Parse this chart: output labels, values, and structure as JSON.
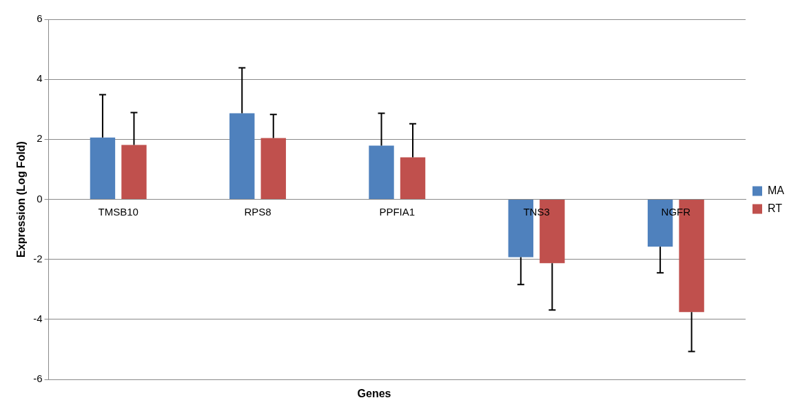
{
  "chart_data": {
    "type": "bar",
    "xlabel": "Genes",
    "ylabel": "Expression (Log Fold)",
    "categories": [
      "TMSB10",
      "RPS8",
      "PPFIA1",
      "TNS3",
      "NGFR"
    ],
    "series": [
      {
        "name": "MA",
        "color": "#4f81bd",
        "values": [
          2.06,
          2.87,
          1.79,
          -1.93,
          -1.58
        ],
        "errors": [
          [
            2.06,
            3.49
          ],
          [
            2.87,
            4.38
          ],
          [
            1.79,
            2.87
          ],
          [
            -2.84,
            -1.93
          ],
          [
            -2.45,
            -1.58
          ]
        ]
      },
      {
        "name": "RT",
        "color": "#c0504d",
        "values": [
          1.81,
          2.04,
          1.4,
          -2.13,
          -3.76
        ],
        "errors": [
          [
            1.81,
            2.89
          ],
          [
            2.04,
            2.83
          ],
          [
            1.4,
            2.52
          ],
          [
            -3.69,
            -2.13
          ],
          [
            -5.07,
            -3.76
          ]
        ]
      }
    ],
    "ylim": [
      -6,
      6
    ],
    "yticks": [
      -6,
      -4,
      -2,
      0,
      2,
      4,
      6
    ],
    "grid": "y",
    "legend": "right"
  }
}
